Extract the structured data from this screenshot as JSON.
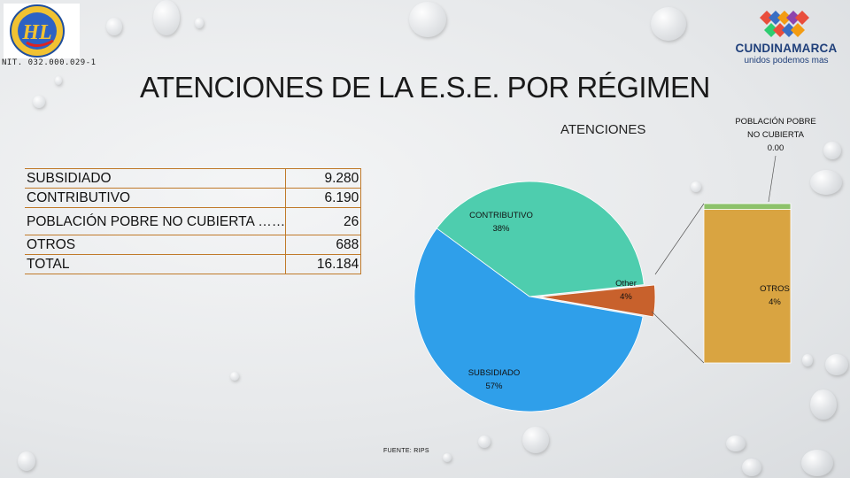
{
  "header": {
    "nit": "NIT. 032.000.029-1",
    "title": "ATENCIONES DE LA E.S.E. POR RÉGIMEN",
    "brand_name": "CUNDINAMARCA",
    "brand_tagline": "unidos podemos mas"
  },
  "table": {
    "rows": [
      {
        "label": "SUBSIDIADO",
        "value": "9.280"
      },
      {
        "label": "CONTRIBUTIVO",
        "value": "6.190"
      },
      {
        "label": "POBLACIÓN POBRE NO CUBIERTA ……",
        "value": "26"
      },
      {
        "label": "OTROS",
        "value": "688"
      },
      {
        "label": "TOTAL",
        "value": "16.184"
      }
    ]
  },
  "source": "FUENTE: RIPS",
  "chart_data": {
    "type": "pie",
    "title": "ATENCIONES",
    "slices": [
      {
        "label": "CONTRIBUTIVO",
        "pct_label": "38%",
        "value": 6190,
        "color": "#4ecdae"
      },
      {
        "label": "Other",
        "pct_label": "4%",
        "value": 714,
        "color": "#c8612c"
      },
      {
        "label": "SUBSIDIADO",
        "pct_label": "57%",
        "value": 9280,
        "color": "#2f9fea"
      }
    ],
    "breakdown": {
      "of": "Other",
      "segments": [
        {
          "label": "OTROS",
          "pct_label": "4%",
          "value": 688,
          "color": "#d9a441"
        },
        {
          "label": "POBLACIÓN POBRE NO CUBIERTA",
          "pct_label": "0.00",
          "value": 26,
          "color": "#8dc26a"
        }
      ]
    }
  }
}
